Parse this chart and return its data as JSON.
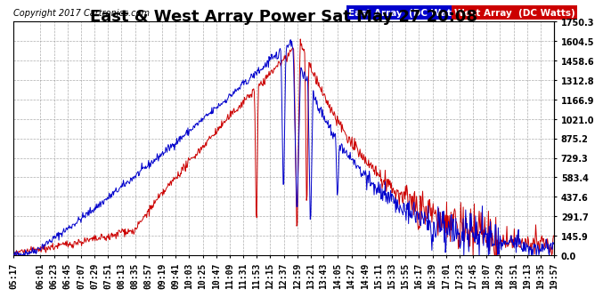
{
  "title": "East & West Array Power Sat May 27 20:08",
  "copyright": "Copyright 2017 Cartronics.com",
  "legend_east": "East Array  (DC Watts)",
  "legend_west": "West Array  (DC Watts)",
  "east_color": "#0000cc",
  "west_color": "#cc0000",
  "background_color": "#ffffff",
  "grid_color": "#999999",
  "yticks": [
    0.0,
    145.9,
    291.7,
    437.6,
    583.4,
    729.3,
    875.2,
    1021.0,
    1166.9,
    1312.8,
    1458.6,
    1604.5,
    1750.3
  ],
  "ymax": 1750.3,
  "ymin": 0.0,
  "xtick_labels": [
    "05:17",
    "06:01",
    "06:23",
    "06:45",
    "07:07",
    "07:29",
    "07:51",
    "08:13",
    "08:35",
    "08:57",
    "09:19",
    "09:41",
    "10:03",
    "10:25",
    "10:47",
    "11:09",
    "11:31",
    "11:53",
    "12:15",
    "12:37",
    "12:59",
    "13:21",
    "13:43",
    "14:05",
    "14:27",
    "14:49",
    "15:11",
    "15:33",
    "15:55",
    "16:17",
    "16:39",
    "17:01",
    "17:23",
    "17:45",
    "18:07",
    "18:29",
    "18:51",
    "19:13",
    "19:35",
    "19:57"
  ],
  "title_fontsize": 13,
  "axis_fontsize": 7,
  "legend_fontsize": 7.5,
  "copyright_fontsize": 7
}
